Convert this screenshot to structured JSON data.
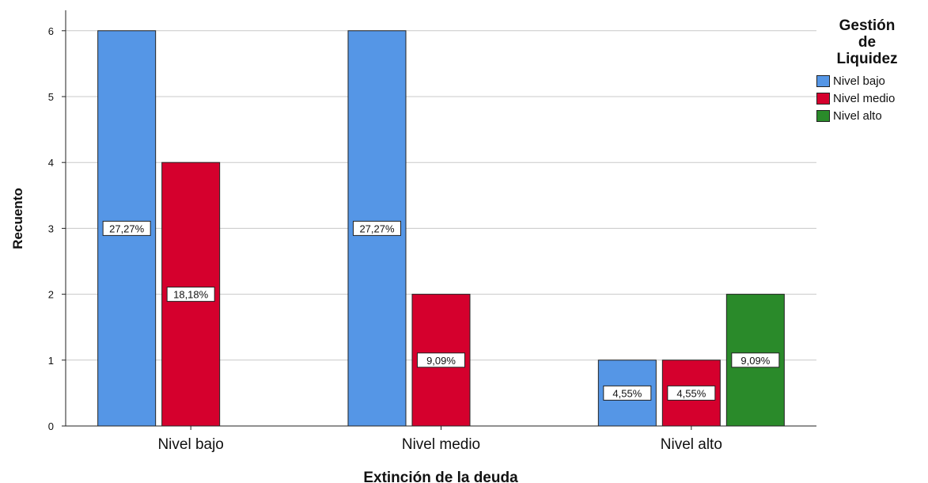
{
  "chart_data": {
    "type": "bar",
    "title": "",
    "xlabel": "Extinción de la deuda",
    "ylabel": "Recuento",
    "ylim": [
      0,
      6.3
    ],
    "yticks": [
      0,
      1,
      2,
      3,
      4,
      5,
      6
    ],
    "grid": true,
    "legend_position": "top-right",
    "legend_title": [
      "Gestión",
      "de",
      "Liquidez"
    ],
    "categories": [
      "Nivel bajo",
      "Nivel medio",
      "Nivel alto"
    ],
    "series": [
      {
        "name": "Nivel bajo",
        "color": "#5596e6",
        "values": [
          6,
          6,
          1
        ],
        "labels": [
          "27,27%",
          "27,27%",
          "4,55%"
        ]
      },
      {
        "name": "Nivel medio",
        "color": "#d5002d",
        "values": [
          4,
          2,
          1
        ],
        "labels": [
          "18,18%",
          "9,09%",
          "4,55%"
        ]
      },
      {
        "name": "Nivel alto",
        "color": "#2a8a2a",
        "values": [
          null,
          null,
          2
        ],
        "labels": [
          null,
          null,
          "9,09%"
        ]
      }
    ]
  }
}
